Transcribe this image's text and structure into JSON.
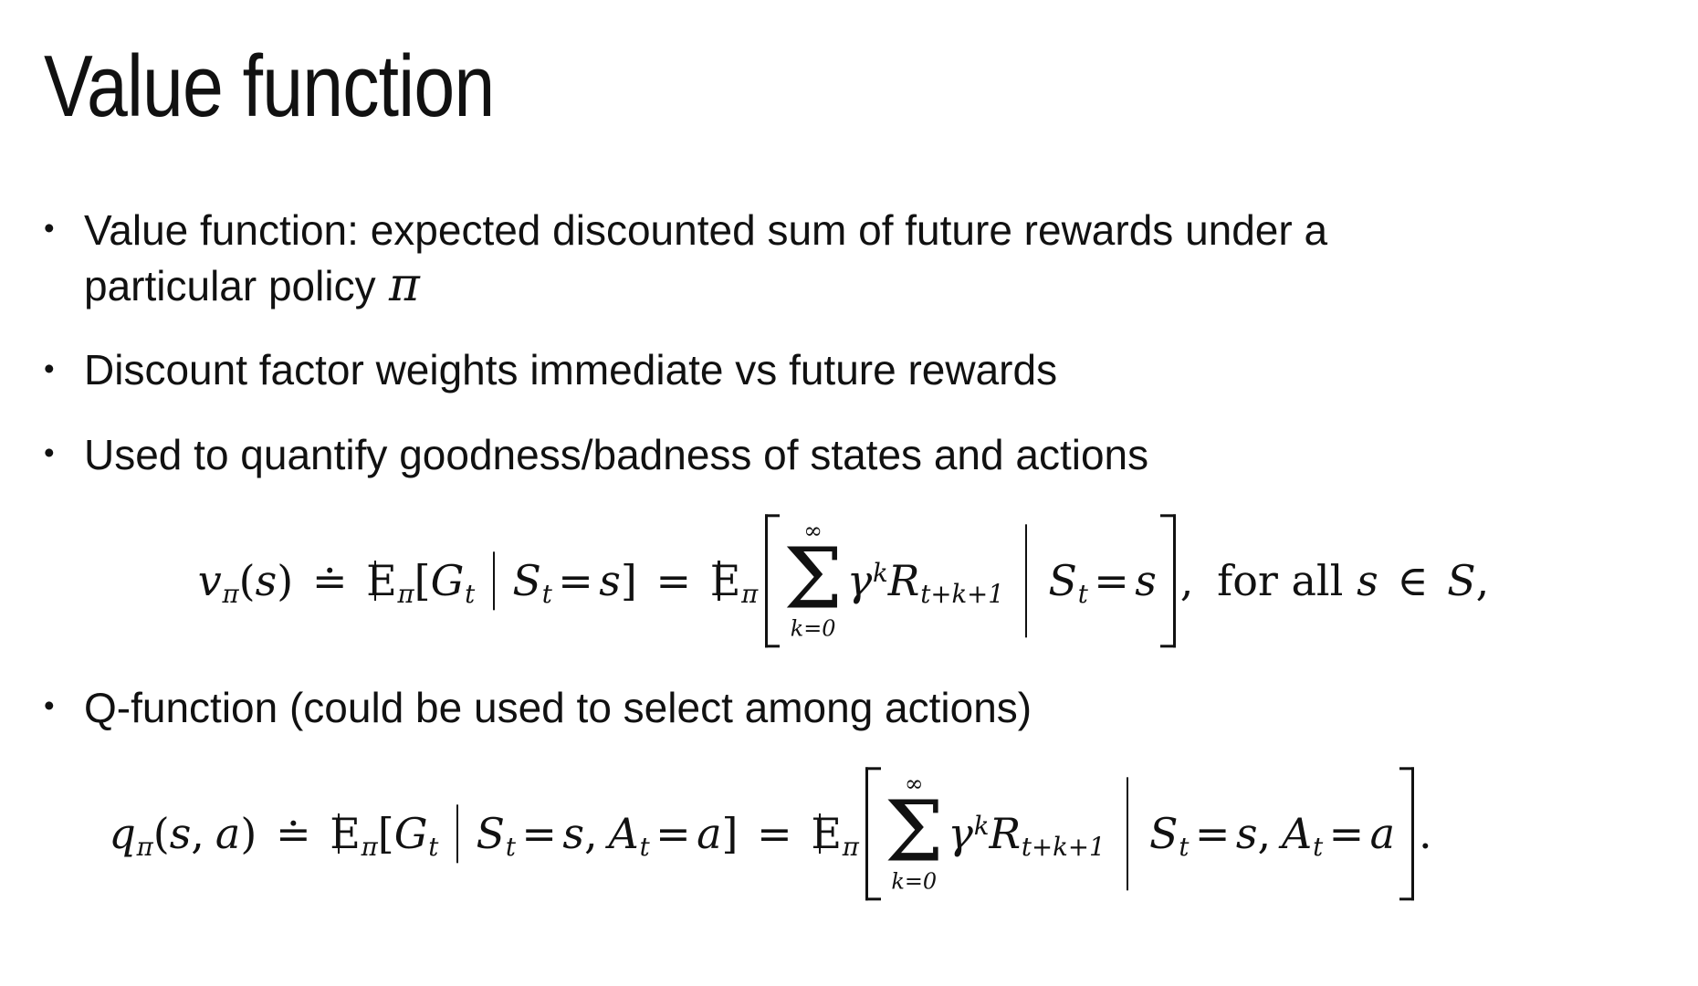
{
  "colors": {
    "background": "#ffffff",
    "text": "#111111"
  },
  "slide": {
    "title": "Value function",
    "bullet_marker": "•",
    "bullets": {
      "b1_line1": "Value function: expected discounted sum of future rewards under a",
      "b1_line2": "particular policy",
      "b1_math_tail": "π",
      "b2": "Discount factor weights immediate vs future rewards",
      "b3": "Used to quantify goodness/badness of states and actions",
      "b4": "Q-function (could be used to select among actions)"
    }
  },
  "formulas": {
    "value_function": [
      {
        "k": "i",
        "v": "v",
        "sub": "π"
      },
      {
        "k": "r",
        "v": "("
      },
      {
        "k": "i",
        "v": "s"
      },
      {
        "k": "r",
        "v": ")"
      },
      {
        "k": "op",
        "v": "≐"
      },
      {
        "k": "bbE",
        "v": "E",
        "sub": "π"
      },
      {
        "k": "r",
        "v": "["
      },
      {
        "k": "i",
        "v": "G",
        "sub": "t"
      },
      {
        "k": "barm"
      },
      {
        "k": "i",
        "v": "S",
        "sub": "t"
      },
      {
        "k": "eq",
        "v": "="
      },
      {
        "k": "i",
        "v": "s"
      },
      {
        "k": "r",
        "v": "]"
      },
      {
        "k": "op",
        "v": "="
      },
      {
        "k": "bbE",
        "v": "E",
        "sub": "π"
      },
      {
        "k": "lbig"
      },
      {
        "k": "sum",
        "top": "∞",
        "sym": "Σ",
        "bot": "k=0"
      },
      {
        "k": "i",
        "v": "γ",
        "sup": "k"
      },
      {
        "k": "i",
        "v": "R",
        "sub": "t+k+1"
      },
      {
        "k": "barbig"
      },
      {
        "k": "i",
        "v": "S",
        "sub": "t"
      },
      {
        "k": "eq",
        "v": "="
      },
      {
        "k": "i",
        "v": "s"
      },
      {
        "k": "rbig"
      },
      {
        "k": "comma",
        "v": ","
      },
      {
        "k": "text",
        "v": "for all"
      },
      {
        "k": "i",
        "v": "s"
      },
      {
        "k": "op",
        "v": "∈"
      },
      {
        "k": "cal",
        "v": "S"
      },
      {
        "k": "r",
        "v": ","
      }
    ],
    "q_function": [
      {
        "k": "i",
        "v": "q",
        "sub": "π"
      },
      {
        "k": "r",
        "v": "("
      },
      {
        "k": "i",
        "v": "s"
      },
      {
        "k": "comma",
        "v": ","
      },
      {
        "k": "i",
        "v": "a"
      },
      {
        "k": "r",
        "v": ")"
      },
      {
        "k": "op",
        "v": "≐"
      },
      {
        "k": "bbE",
        "v": "E",
        "sub": "π"
      },
      {
        "k": "r",
        "v": "["
      },
      {
        "k": "i",
        "v": "G",
        "sub": "t"
      },
      {
        "k": "barm"
      },
      {
        "k": "i",
        "v": "S",
        "sub": "t"
      },
      {
        "k": "eq",
        "v": "="
      },
      {
        "k": "i",
        "v": "s"
      },
      {
        "k": "comma",
        "v": ","
      },
      {
        "k": "i",
        "v": "A",
        "sub": "t"
      },
      {
        "k": "eq",
        "v": "="
      },
      {
        "k": "i",
        "v": "a"
      },
      {
        "k": "r",
        "v": "]"
      },
      {
        "k": "op",
        "v": "="
      },
      {
        "k": "bbE",
        "v": "E",
        "sub": "π"
      },
      {
        "k": "lbig"
      },
      {
        "k": "sum",
        "top": "∞",
        "sym": "Σ",
        "bot": "k=0"
      },
      {
        "k": "i",
        "v": "γ",
        "sup": "k"
      },
      {
        "k": "i",
        "v": "R",
        "sub": "t+k+1"
      },
      {
        "k": "barbig"
      },
      {
        "k": "i",
        "v": "S",
        "sub": "t"
      },
      {
        "k": "eq",
        "v": "="
      },
      {
        "k": "i",
        "v": "s"
      },
      {
        "k": "comma",
        "v": ","
      },
      {
        "k": "i",
        "v": "A",
        "sub": "t"
      },
      {
        "k": "eq",
        "v": "="
      },
      {
        "k": "i",
        "v": "a"
      },
      {
        "k": "rbig"
      },
      {
        "k": "r",
        "v": "."
      }
    ]
  }
}
